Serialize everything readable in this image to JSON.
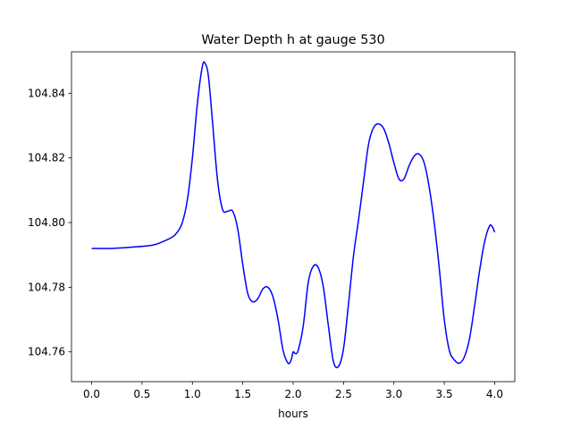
{
  "chart_data": {
    "type": "line",
    "title": "Water Depth h at gauge 530",
    "xlabel": "hours",
    "ylabel": "",
    "xlim": [
      -0.2,
      4.2
    ],
    "ylim": [
      104.7508,
      104.8528
    ],
    "xticks": [
      0.0,
      0.5,
      1.0,
      1.5,
      2.0,
      2.5,
      3.0,
      3.5,
      4.0
    ],
    "xtick_labels": [
      "0.0",
      "0.5",
      "1.0",
      "1.5",
      "2.0",
      "2.5",
      "3.0",
      "3.5",
      "4.0"
    ],
    "yticks": [
      104.76,
      104.78,
      104.8,
      104.82,
      104.84
    ],
    "ytick_labels": [
      "104.76",
      "104.78",
      "104.80",
      "104.82",
      "104.84"
    ],
    "grid": false,
    "series": [
      {
        "color": "#0000ff",
        "x": [
          0.0,
          0.2,
          0.4,
          0.6,
          0.7,
          0.8,
          0.85,
          0.9,
          0.95,
          1.0,
          1.05,
          1.1,
          1.13,
          1.16,
          1.2,
          1.25,
          1.3,
          1.35,
          1.4,
          1.45,
          1.5,
          1.55,
          1.6,
          1.65,
          1.7,
          1.75,
          1.8,
          1.85,
          1.9,
          1.95,
          1.98,
          2.0,
          2.02,
          2.05,
          2.1,
          2.15,
          2.2,
          2.25,
          2.3,
          2.35,
          2.4,
          2.45,
          2.5,
          2.55,
          2.6,
          2.65,
          2.7,
          2.75,
          2.8,
          2.85,
          2.9,
          2.95,
          3.0,
          3.05,
          3.1,
          3.15,
          3.2,
          3.25,
          3.3,
          3.35,
          3.4,
          3.45,
          3.5,
          3.55,
          3.6,
          3.65,
          3.7,
          3.75,
          3.8,
          3.85,
          3.9,
          3.95,
          3.98,
          4.0
        ],
        "y": [
          104.792,
          104.792,
          104.7924,
          104.793,
          104.794,
          104.7955,
          104.797,
          104.8,
          104.807,
          104.82,
          104.837,
          104.8485,
          104.849,
          104.845,
          104.831,
          104.813,
          104.804,
          104.8035,
          104.8035,
          104.798,
          104.787,
          104.778,
          104.7755,
          104.7765,
          104.7795,
          104.78,
          104.777,
          104.77,
          104.7605,
          104.7565,
          104.7575,
          104.76,
          104.7595,
          104.7605,
          104.768,
          104.7815,
          104.7865,
          104.786,
          104.78,
          104.768,
          104.757,
          104.7555,
          104.761,
          104.775,
          104.79,
          104.801,
          104.813,
          104.8245,
          104.8295,
          104.8305,
          104.829,
          104.8245,
          104.8185,
          104.8135,
          104.8135,
          104.8175,
          104.8205,
          104.8212,
          104.8185,
          104.811,
          104.8,
          104.786,
          104.77,
          104.7605,
          104.7575,
          104.7565,
          104.7585,
          104.764,
          104.774,
          104.785,
          104.794,
          104.799,
          104.7985,
          104.797
        ]
      }
    ]
  }
}
